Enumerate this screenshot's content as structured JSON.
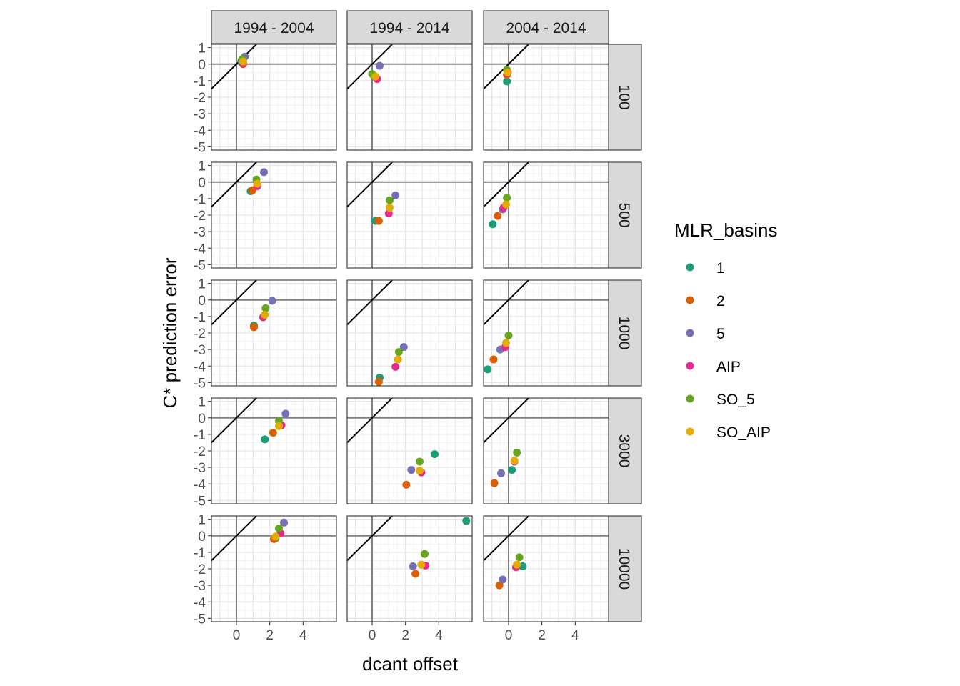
{
  "chart_data": {
    "type": "scatter",
    "xlabel": "dcant offset",
    "ylabel": "C* prediction error",
    "xlim": [
      -1.5,
      6
    ],
    "ylim": [
      -5.2,
      1.2
    ],
    "x_ticks": [
      0,
      2,
      4
    ],
    "y_ticks": [
      1,
      0,
      -1,
      -2,
      -3,
      -4,
      -5
    ],
    "grid": true,
    "reference_lines": [
      "x = 0",
      "y = 0",
      "y = x"
    ],
    "facet_columns": [
      "1994 - 2004",
      "1994 - 2014",
      "2004 - 2014"
    ],
    "facet_rows": [
      "100",
      "500",
      "1000",
      "3000",
      "10000"
    ],
    "legend": {
      "title": "MLR_basins",
      "position": "right",
      "entries": [
        {
          "label": "1",
          "color": "#1B9E77"
        },
        {
          "label": "2",
          "color": "#D95F02"
        },
        {
          "label": "5",
          "color": "#7570B3"
        },
        {
          "label": "AIP",
          "color": "#E7298A"
        },
        {
          "label": "SO_5",
          "color": "#66A61E"
        },
        {
          "label": "SO_AIP",
          "color": "#E6AB02"
        }
      ]
    },
    "panels": [
      {
        "col": "1994 - 2004",
        "row": "100",
        "points": {
          "1": [
            0.3,
            0.2
          ],
          "2": [
            0.4,
            0.0
          ],
          "5": [
            0.5,
            0.45
          ],
          "AIP": [
            0.4,
            0.05
          ],
          "SO_5": [
            0.35,
            0.3
          ],
          "SO_AIP": [
            0.4,
            0.15
          ]
        }
      },
      {
        "col": "1994 - 2014",
        "row": "100",
        "points": {
          "1": [
            0.15,
            -0.75
          ],
          "2": [
            0.25,
            -0.85
          ],
          "5": [
            0.45,
            -0.1
          ],
          "AIP": [
            0.3,
            -0.9
          ],
          "SO_5": [
            0.0,
            -0.6
          ],
          "SO_AIP": [
            0.2,
            -0.75
          ]
        }
      },
      {
        "col": "2004 - 2014",
        "row": "100",
        "points": {
          "1": [
            -0.1,
            -1.05
          ],
          "2": [
            -0.1,
            -0.65
          ],
          "5": [
            -0.05,
            -0.45
          ],
          "AIP": [
            -0.05,
            -0.55
          ],
          "SO_5": [
            -0.1,
            -0.35
          ],
          "SO_AIP": [
            -0.05,
            -0.5
          ]
        }
      },
      {
        "col": "1994 - 2004",
        "row": "500",
        "points": {
          "1": [
            0.85,
            -0.55
          ],
          "2": [
            0.95,
            -0.5
          ],
          "5": [
            1.65,
            0.6
          ],
          "AIP": [
            1.25,
            -0.25
          ],
          "SO_5": [
            1.2,
            0.15
          ],
          "SO_AIP": [
            1.25,
            -0.1
          ]
        }
      },
      {
        "col": "1994 - 2014",
        "row": "500",
        "points": {
          "1": [
            0.2,
            -2.35
          ],
          "2": [
            0.4,
            -2.35
          ],
          "5": [
            1.4,
            -0.8
          ],
          "AIP": [
            1.0,
            -1.9
          ],
          "SO_5": [
            1.05,
            -1.1
          ],
          "SO_AIP": [
            1.05,
            -1.55
          ]
        }
      },
      {
        "col": "2004 - 2014",
        "row": "500",
        "points": {
          "1": [
            -0.95,
            -2.55
          ],
          "2": [
            -0.65,
            -2.05
          ],
          "5": [
            -0.35,
            -1.65
          ],
          "AIP": [
            -0.3,
            -1.55
          ],
          "SO_5": [
            -0.1,
            -0.95
          ],
          "SO_AIP": [
            -0.15,
            -1.35
          ]
        }
      },
      {
        "col": "1994 - 2004",
        "row": "1000",
        "points": {
          "1": [
            1.05,
            -1.55
          ],
          "2": [
            1.05,
            -1.65
          ],
          "5": [
            2.15,
            -0.05
          ],
          "AIP": [
            1.6,
            -1.05
          ],
          "SO_5": [
            1.75,
            -0.5
          ],
          "SO_AIP": [
            1.7,
            -0.9
          ]
        }
      },
      {
        "col": "1994 - 2014",
        "row": "1000",
        "points": {
          "1": [
            0.45,
            -4.7
          ],
          "2": [
            0.4,
            -4.95
          ],
          "5": [
            1.9,
            -2.85
          ],
          "AIP": [
            1.4,
            -4.05
          ],
          "SO_5": [
            1.6,
            -3.15
          ],
          "SO_AIP": [
            1.55,
            -3.6
          ]
        }
      },
      {
        "col": "2004 - 2014",
        "row": "1000",
        "points": {
          "1": [
            -1.25,
            -4.2
          ],
          "2": [
            -0.9,
            -3.6
          ],
          "5": [
            -0.5,
            -3.0
          ],
          "AIP": [
            -0.2,
            -2.85
          ],
          "SO_5": [
            0.0,
            -2.15
          ],
          "SO_AIP": [
            -0.15,
            -2.6
          ]
        }
      },
      {
        "col": "1994 - 2004",
        "row": "3000",
        "points": {
          "1": [
            1.7,
            -1.3
          ],
          "2": [
            2.2,
            -0.9
          ],
          "5": [
            2.95,
            0.25
          ],
          "AIP": [
            2.7,
            -0.45
          ],
          "SO_5": [
            2.55,
            -0.2
          ],
          "SO_AIP": [
            2.55,
            -0.5
          ]
        }
      },
      {
        "col": "1994 - 2014",
        "row": "3000",
        "points": {
          "1": [
            3.75,
            -2.2
          ],
          "2": [
            2.05,
            -4.05
          ],
          "5": [
            2.35,
            -3.15
          ],
          "AIP": [
            2.95,
            -3.3
          ],
          "SO_5": [
            2.85,
            -2.65
          ],
          "SO_AIP": [
            2.85,
            -3.2
          ]
        }
      },
      {
        "col": "2004 - 2014",
        "row": "3000",
        "points": {
          "1": [
            0.2,
            -3.15
          ],
          "2": [
            -0.85,
            -3.95
          ],
          "5": [
            -0.45,
            -3.35
          ],
          "AIP": [
            0.35,
            -2.65
          ],
          "SO_5": [
            0.5,
            -2.1
          ],
          "SO_AIP": [
            0.35,
            -2.6
          ]
        }
      },
      {
        "col": "1994 - 2004",
        "row": "10000",
        "points": {
          "1": [
            2.35,
            -0.15
          ],
          "2": [
            2.25,
            -0.2
          ],
          "5": [
            2.85,
            0.8
          ],
          "AIP": [
            2.65,
            0.15
          ],
          "SO_5": [
            2.55,
            0.45
          ],
          "SO_AIP": [
            2.35,
            -0.05
          ]
        }
      },
      {
        "col": "1994 - 2014",
        "row": "10000",
        "points": {
          "1": [
            5.65,
            0.9
          ],
          "2": [
            2.6,
            -2.3
          ],
          "5": [
            2.45,
            -1.85
          ],
          "AIP": [
            3.2,
            -1.8
          ],
          "SO_5": [
            3.15,
            -1.1
          ],
          "SO_AIP": [
            2.95,
            -1.75
          ]
        }
      },
      {
        "col": "2004 - 2014",
        "row": "10000",
        "points": {
          "1": [
            0.85,
            -1.85
          ],
          "2": [
            -0.55,
            -3.0
          ],
          "5": [
            -0.35,
            -2.65
          ],
          "AIP": [
            0.45,
            -1.9
          ],
          "SO_5": [
            0.65,
            -1.3
          ],
          "SO_AIP": [
            0.5,
            -1.75
          ]
        }
      }
    ]
  }
}
